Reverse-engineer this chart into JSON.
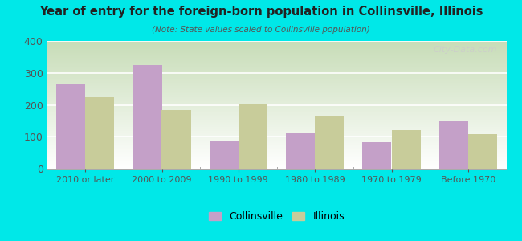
{
  "title": "Year of entry for the foreign-born population in Collinsville, Illinois",
  "subtitle": "(Note: State values scaled to Collinsville population)",
  "categories": [
    "2010 or later",
    "2000 to 2009",
    "1990 to 1999",
    "1980 to 1989",
    "1970 to 1979",
    "Before 1970"
  ],
  "collinsville_values": [
    265,
    325,
    88,
    110,
    83,
    148
  ],
  "illinois_values": [
    225,
    183,
    202,
    165,
    120,
    108
  ],
  "collinsville_color": "#c4a0c8",
  "illinois_color": "#c8cc9a",
  "background_outer": "#00e8e8",
  "plot_bg_top": "#ffffff",
  "plot_bg_bottom": "#c8ddb8",
  "ylim": [
    0,
    400
  ],
  "yticks": [
    0,
    100,
    200,
    300,
    400
  ],
  "bar_width": 0.38,
  "legend_labels": [
    "Collinsville",
    "Illinois"
  ],
  "watermark": "City-Data.com"
}
